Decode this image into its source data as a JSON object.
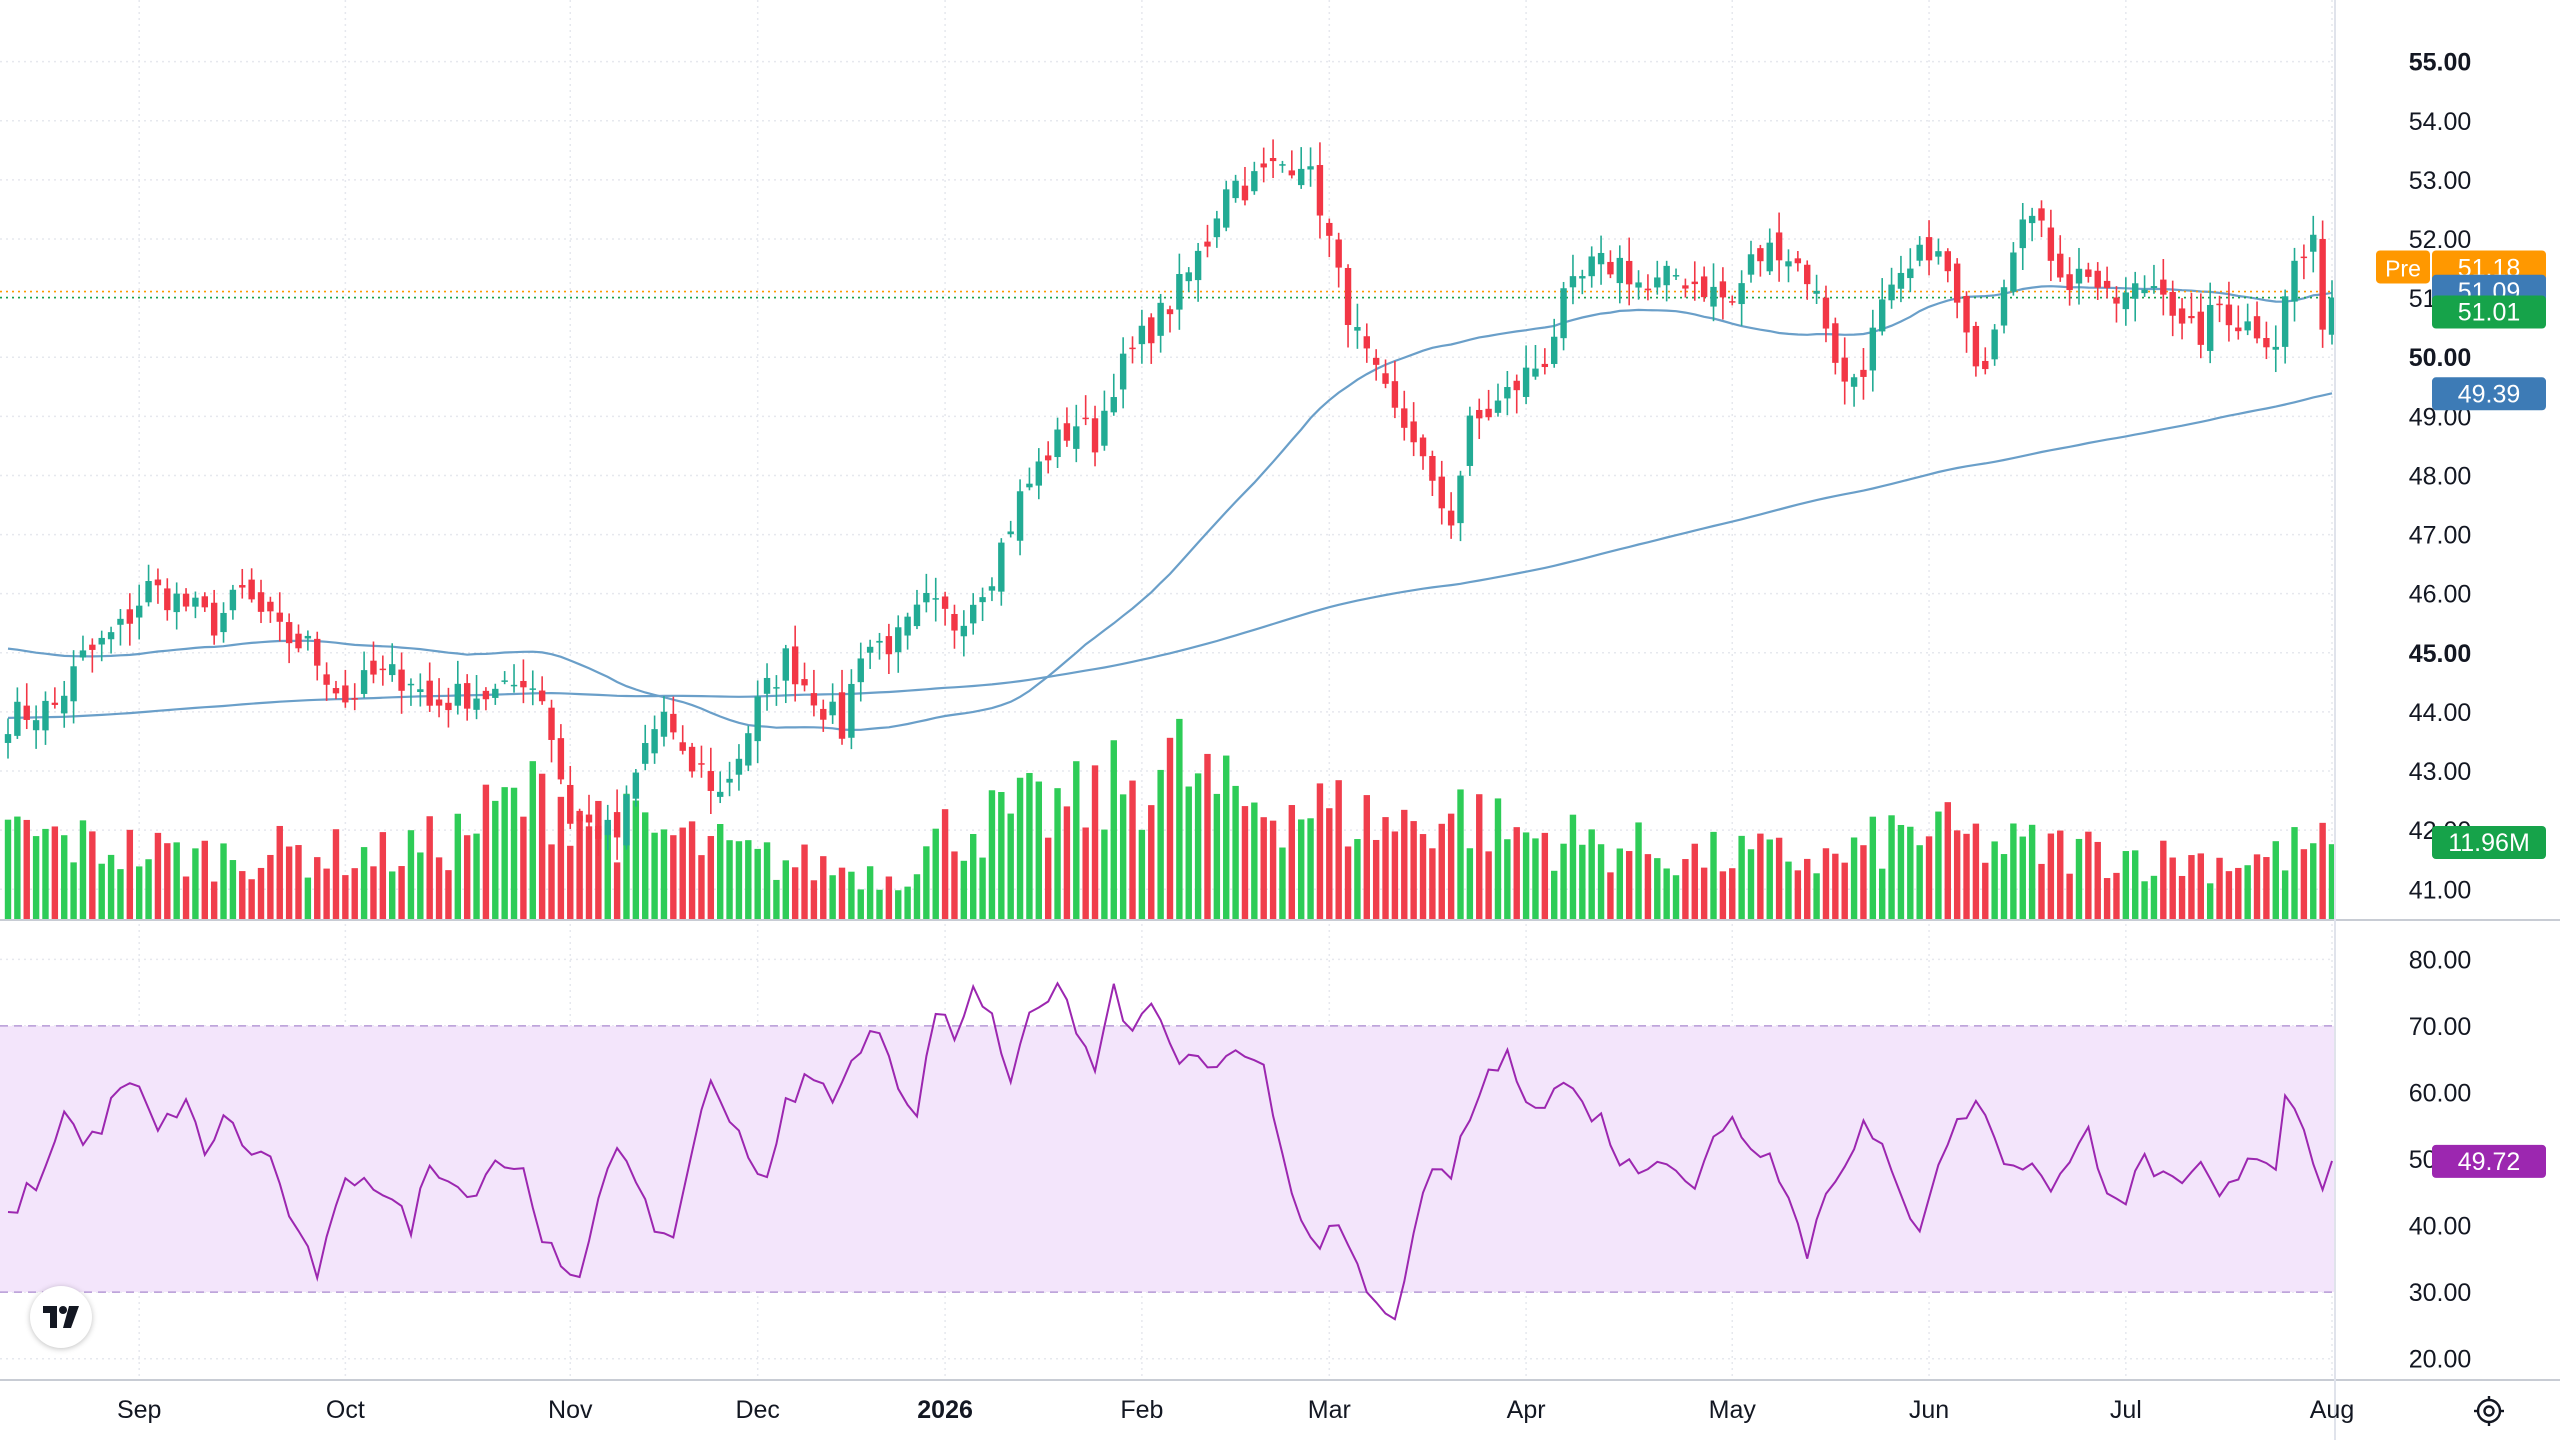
{
  "chart_data": {
    "type": "candlestick",
    "symbol_session_label": "Pre",
    "price_axis": {
      "ylim": [
        40.7,
        55.4
      ],
      "ticks": [
        "55.00",
        "54.00",
        "53.00",
        "52.00",
        "51.00",
        "50.00",
        "49.00",
        "48.00",
        "47.00",
        "46.00",
        "45.00",
        "44.00",
        "43.00",
        "42.00",
        "41.00"
      ],
      "bold_ticks": [
        "55.00",
        "50.00",
        "45.00"
      ]
    },
    "rsi_axis": {
      "ylim": [
        18,
        82
      ],
      "ticks": [
        "80.00",
        "70.00",
        "60.00",
        "50.00",
        "40.00",
        "30.00",
        "20.00"
      ],
      "band": [
        30,
        70
      ]
    },
    "x_axis_labels": [
      {
        "text": "Sep",
        "bold": false,
        "index": 14
      },
      {
        "text": "Oct",
        "bold": false,
        "index": 36
      },
      {
        "text": "Nov",
        "bold": false,
        "index": 60
      },
      {
        "text": "Dec",
        "bold": false,
        "index": 80
      },
      {
        "text": "2026",
        "bold": true,
        "index": 100
      },
      {
        "text": "Feb",
        "bold": false,
        "index": 121
      },
      {
        "text": "Mar",
        "bold": false,
        "index": 141
      },
      {
        "text": "Apr",
        "bold": false,
        "index": 162
      },
      {
        "text": "May",
        "bold": false,
        "index": 184
      },
      {
        "text": "Jun",
        "bold": false,
        "index": 205
      },
      {
        "text": "Jul",
        "bold": false,
        "index": 226
      },
      {
        "text": "Aug",
        "bold": false,
        "index": 248
      }
    ],
    "badges": {
      "premarket": "51.18",
      "ma_short": "51.09",
      "last": "51.01",
      "ma_long": "49.39",
      "volume": "11.96M",
      "rsi": "49.72"
    },
    "bar_count": 249,
    "close_keyframes": [
      [
        0,
        43.9
      ],
      [
        5,
        44.1
      ],
      [
        8,
        44.9
      ],
      [
        12,
        45.4
      ],
      [
        15,
        46.1
      ],
      [
        18,
        45.9
      ],
      [
        22,
        45.5
      ],
      [
        25,
        46.0
      ],
      [
        29,
        45.3
      ],
      [
        32,
        45.1
      ],
      [
        36,
        44.2
      ],
      [
        39,
        44.6
      ],
      [
        43,
        44.6
      ],
      [
        45,
        44.1
      ],
      [
        49,
        44.3
      ],
      [
        53,
        44.3
      ],
      [
        55,
        44.6
      ],
      [
        57,
        44.3
      ],
      [
        60,
        42.2
      ],
      [
        63,
        42.0
      ],
      [
        65,
        41.9
      ],
      [
        68,
        43.4
      ],
      [
        70,
        44.0
      ],
      [
        72,
        43.1
      ],
      [
        74,
        43.0
      ],
      [
        76,
        42.6
      ],
      [
        78,
        43.3
      ],
      [
        80,
        44.1
      ],
      [
        83,
        44.9
      ],
      [
        86,
        44.3
      ],
      [
        89,
        43.7
      ],
      [
        91,
        45.1
      ],
      [
        95,
        45.2
      ],
      [
        98,
        45.8
      ],
      [
        101,
        45.5
      ],
      [
        105,
        46.4
      ],
      [
        108,
        47.6
      ],
      [
        111,
        48.4
      ],
      [
        114,
        48.9
      ],
      [
        116,
        48.6
      ],
      [
        118,
        49.6
      ],
      [
        121,
        50.3
      ],
      [
        124,
        50.9
      ],
      [
        126,
        51.4
      ],
      [
        128,
        52.0
      ],
      [
        130,
        53.0
      ],
      [
        132,
        52.9
      ],
      [
        135,
        53.2
      ],
      [
        138,
        53.4
      ],
      [
        140,
        52.6
      ],
      [
        142,
        51.3
      ],
      [
        144,
        50.3
      ],
      [
        146,
        49.6
      ],
      [
        148,
        49.0
      ],
      [
        150,
        48.7
      ],
      [
        152,
        47.7
      ],
      [
        154,
        47.3
      ],
      [
        156,
        48.8
      ],
      [
        159,
        49.2
      ],
      [
        162,
        49.7
      ],
      [
        164,
        50.0
      ],
      [
        166,
        50.9
      ],
      [
        169,
        51.5
      ],
      [
        172,
        51.6
      ],
      [
        175,
        51.1
      ],
      [
        178,
        51.4
      ],
      [
        181,
        51.2
      ],
      [
        184,
        50.9
      ],
      [
        186,
        51.6
      ],
      [
        189,
        51.9
      ],
      [
        192,
        51.4
      ],
      [
        194,
        50.6
      ],
      [
        196,
        49.5
      ],
      [
        198,
        49.9
      ],
      [
        200,
        50.8
      ],
      [
        203,
        51.4
      ],
      [
        205,
        51.9
      ],
      [
        207,
        51.4
      ],
      [
        209,
        50.2
      ],
      [
        211,
        50.0
      ],
      [
        213,
        51.4
      ],
      [
        215,
        52.6
      ],
      [
        218,
        51.8
      ],
      [
        220,
        51.3
      ],
      [
        222,
        51.5
      ],
      [
        224,
        50.9
      ],
      [
        226,
        51.0
      ],
      [
        228,
        51.2
      ],
      [
        230,
        51.3
      ],
      [
        232,
        50.4
      ],
      [
        234,
        50.4
      ],
      [
        236,
        50.9
      ],
      [
        238,
        50.6
      ],
      [
        240,
        50.5
      ],
      [
        242,
        50.3
      ],
      [
        244,
        51.6
      ],
      [
        246,
        51.8
      ],
      [
        247,
        50.7
      ],
      [
        248,
        51.01
      ]
    ],
    "rsi_keyframes": [
      [
        0,
        41
      ],
      [
        2,
        45
      ],
      [
        4,
        48
      ],
      [
        6,
        58
      ],
      [
        8,
        52
      ],
      [
        10,
        55
      ],
      [
        12,
        61
      ],
      [
        14,
        60
      ],
      [
        16,
        54
      ],
      [
        19,
        59
      ],
      [
        21,
        50
      ],
      [
        23,
        57
      ],
      [
        25,
        52
      ],
      [
        28,
        50
      ],
      [
        31,
        38
      ],
      [
        33,
        33
      ],
      [
        36,
        46
      ],
      [
        38,
        48
      ],
      [
        40,
        45
      ],
      [
        43,
        40
      ],
      [
        45,
        49
      ],
      [
        47,
        48
      ],
      [
        49,
        44
      ],
      [
        52,
        50
      ],
      [
        55,
        48
      ],
      [
        57,
        39
      ],
      [
        59,
        33
      ],
      [
        61,
        31
      ],
      [
        63,
        45
      ],
      [
        65,
        53
      ],
      [
        67,
        45
      ],
      [
        69,
        40
      ],
      [
        71,
        38
      ],
      [
        73,
        52
      ],
      [
        75,
        61
      ],
      [
        77,
        57
      ],
      [
        79,
        51
      ],
      [
        81,
        46
      ],
      [
        83,
        58
      ],
      [
        85,
        62
      ],
      [
        88,
        60
      ],
      [
        91,
        66
      ],
      [
        93,
        70
      ],
      [
        95,
        62
      ],
      [
        97,
        56
      ],
      [
        99,
        73
      ],
      [
        101,
        68
      ],
      [
        103,
        76
      ],
      [
        105,
        71
      ],
      [
        107,
        62
      ],
      [
        109,
        73
      ],
      [
        112,
        75
      ],
      [
        114,
        70
      ],
      [
        116,
        63
      ],
      [
        118,
        76
      ],
      [
        120,
        68
      ],
      [
        122,
        74
      ],
      [
        124,
        66
      ],
      [
        126,
        65
      ],
      [
        128,
        64
      ],
      [
        131,
        65
      ],
      [
        134,
        63
      ],
      [
        136,
        51
      ],
      [
        138,
        41
      ],
      [
        140,
        38
      ],
      [
        142,
        39
      ],
      [
        144,
        33
      ],
      [
        146,
        28
      ],
      [
        148,
        25
      ],
      [
        150,
        40
      ],
      [
        152,
        47
      ],
      [
        154,
        48
      ],
      [
        156,
        56
      ],
      [
        158,
        63
      ],
      [
        160,
        65
      ],
      [
        162,
        60
      ],
      [
        164,
        58
      ],
      [
        166,
        62
      ],
      [
        168,
        58
      ],
      [
        170,
        56
      ],
      [
        172,
        50
      ],
      [
        174,
        48
      ],
      [
        176,
        51
      ],
      [
        178,
        49
      ],
      [
        180,
        45
      ],
      [
        182,
        53
      ],
      [
        184,
        57
      ],
      [
        186,
        51
      ],
      [
        188,
        52
      ],
      [
        190,
        44
      ],
      [
        192,
        36
      ],
      [
        194,
        45
      ],
      [
        196,
        50
      ],
      [
        198,
        55
      ],
      [
        200,
        51
      ],
      [
        202,
        44
      ],
      [
        204,
        40
      ],
      [
        206,
        50
      ],
      [
        208,
        55
      ],
      [
        210,
        59
      ],
      [
        212,
        53
      ],
      [
        214,
        48
      ],
      [
        216,
        50
      ],
      [
        218,
        46
      ],
      [
        220,
        49
      ],
      [
        222,
        54
      ],
      [
        224,
        46
      ],
      [
        226,
        44
      ],
      [
        228,
        50
      ],
      [
        230,
        47
      ],
      [
        232,
        45
      ],
      [
        234,
        49
      ],
      [
        236,
        44
      ],
      [
        238,
        47
      ],
      [
        240,
        51
      ],
      [
        242,
        49
      ],
      [
        243,
        60
      ],
      [
        245,
        55
      ],
      [
        247,
        46
      ],
      [
        248,
        49.72
      ]
    ],
    "volume_keyframes": [
      [
        0,
        5.0
      ],
      [
        10,
        4.2
      ],
      [
        20,
        3.6
      ],
      [
        30,
        3.9
      ],
      [
        40,
        3.7
      ],
      [
        47,
        4.5
      ],
      [
        53,
        6.5
      ],
      [
        58,
        7.2
      ],
      [
        64,
        5.5
      ],
      [
        72,
        4.6
      ],
      [
        80,
        3.5
      ],
      [
        88,
        3.0
      ],
      [
        95,
        2.5
      ],
      [
        100,
        5.0
      ],
      [
        108,
        6.0
      ],
      [
        115,
        6.6
      ],
      [
        120,
        8.0
      ],
      [
        125,
        8.9
      ],
      [
        130,
        6.8
      ],
      [
        137,
        6.6
      ],
      [
        142,
        6.1
      ],
      [
        148,
        5.4
      ],
      [
        155,
        6.2
      ],
      [
        160,
        5.0
      ],
      [
        166,
        4.6
      ],
      [
        172,
        4.2
      ],
      [
        180,
        3.6
      ],
      [
        186,
        3.7
      ],
      [
        195,
        3.4
      ],
      [
        201,
        4.7
      ],
      [
        205,
        5.1
      ],
      [
        212,
        4.2
      ],
      [
        218,
        4.1
      ],
      [
        224,
        3.9
      ],
      [
        230,
        3.5
      ],
      [
        236,
        3.4
      ],
      [
        242,
        3.6
      ],
      [
        246,
        4.4
      ],
      [
        248,
        3.9
      ]
    ],
    "volume_ylim": [
      0,
      12
    ],
    "sma_short_period": 50,
    "sma_long_period": 200,
    "colors": {
      "up": "#26a69a",
      "down": "#ef5350",
      "up_candle": "#22ab94",
      "down_candle": "#f23645",
      "vol_up": "#2ecc57",
      "vol_down": "#f03e4c",
      "ma": "#6a9fc9",
      "rsi_line": "#9c27b0",
      "rsi_band": "#f3e5fb",
      "pre_badge": "#ff9800",
      "ma_badge": "#3d7bb6",
      "last_badge": "#16a34a",
      "rsi_badge": "#9c27b0"
    }
  }
}
